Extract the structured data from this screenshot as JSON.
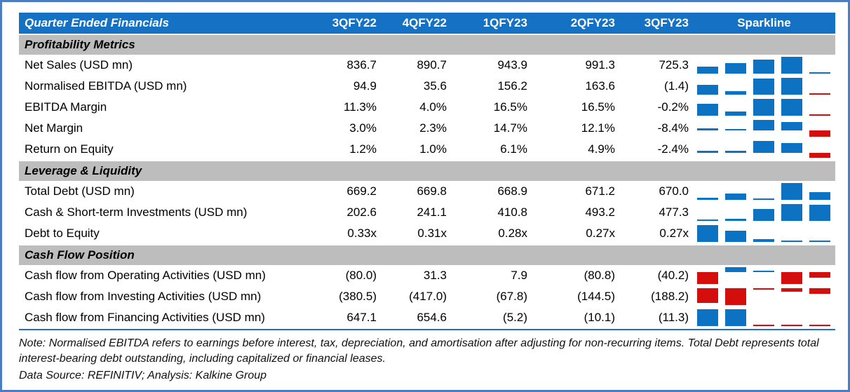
{
  "colors": {
    "frame_border": "#4A7EBF",
    "header_bg": "#1571C4",
    "header_text": "#FFFFFF",
    "section_bg": "#BDBDBD",
    "bottom_rule": "#1F6FC4",
    "spark_positive": "#0E72C2",
    "spark_negative": "#D40D0D"
  },
  "chart_data": {
    "type": "table",
    "title": "Quarter Ended Financials",
    "columns": [
      "3QFY22",
      "4QFY22",
      "1QFY23",
      "2QFY23",
      "3QFY23"
    ],
    "sparkline_label": "Sparkline",
    "sparkline": {
      "style": "column",
      "positive_color": "#0E72C2",
      "negative_color": "#D40D0D",
      "scaling": "per-row min-max, axis at zero when mixed signs"
    },
    "sections": [
      {
        "label": "Profitability Metrics",
        "rows": [
          {
            "label": "Net Sales (USD mn)",
            "display": [
              "836.7",
              "890.7",
              "943.9",
              "991.3",
              "725.3"
            ],
            "values": [
              836.7,
              890.7,
              943.9,
              991.3,
              725.3
            ]
          },
          {
            "label": "Normalised EBITDA (USD mn)",
            "display": [
              "94.9",
              "35.6",
              "156.2",
              "163.6",
              "(1.4)"
            ],
            "values": [
              94.9,
              35.6,
              156.2,
              163.6,
              -1.4
            ]
          },
          {
            "label": "EBITDA Margin",
            "display": [
              "11.3%",
              "4.0%",
              "16.5%",
              "16.5%",
              "-0.2%"
            ],
            "values": [
              11.3,
              4.0,
              16.5,
              16.5,
              -0.2
            ]
          },
          {
            "label": "Net Margin",
            "display": [
              "3.0%",
              "2.3%",
              "14.7%",
              "12.1%",
              "-8.4%"
            ],
            "values": [
              3.0,
              2.3,
              14.7,
              12.1,
              -8.4
            ]
          },
          {
            "label": "Return on Equity",
            "display": [
              "1.2%",
              "1.0%",
              "6.1%",
              "4.9%",
              "-2.4%"
            ],
            "values": [
              1.2,
              1.0,
              6.1,
              4.9,
              -2.4
            ]
          }
        ]
      },
      {
        "label": "Leverage & Liquidity",
        "rows": [
          {
            "label": "Total Debt (USD mn)",
            "display": [
              "669.2",
              "669.8",
              "668.9",
              "671.2",
              "670.0"
            ],
            "values": [
              669.2,
              669.8,
              668.9,
              671.2,
              670.0
            ]
          },
          {
            "label": "Cash & Short-term Investments (USD mn)",
            "display": [
              "202.6",
              "241.1",
              "410.8",
              "493.2",
              "477.3"
            ],
            "values": [
              202.6,
              241.1,
              410.8,
              493.2,
              477.3
            ]
          },
          {
            "label": "Debt to Equity",
            "display": [
              "0.33x",
              "0.31x",
              "0.28x",
              "0.27x",
              "0.27x"
            ],
            "values": [
              0.33,
              0.31,
              0.28,
              0.27,
              0.27
            ]
          }
        ]
      },
      {
        "label": "Cash Flow Position",
        "rows": [
          {
            "label": "Cash flow from Operating Activities (USD mn)",
            "display": [
              "(80.0)",
              "31.3",
              "7.9",
              "(80.8)",
              "(40.2)"
            ],
            "values": [
              -80.0,
              31.3,
              7.9,
              -80.8,
              -40.2
            ]
          },
          {
            "label": "Cash flow from Investing Activities (USD mn)",
            "display": [
              "(380.5)",
              "(417.0)",
              "(67.8)",
              "(144.5)",
              "(188.2)"
            ],
            "values": [
              -380.5,
              -417.0,
              -67.8,
              -144.5,
              -188.2
            ]
          },
          {
            "label": "Cash flow from Financing Activities (USD mn)",
            "display": [
              "647.1",
              "654.6",
              "(5.2)",
              "(10.1)",
              "(11.3)"
            ],
            "values": [
              647.1,
              654.6,
              -5.2,
              -10.1,
              -11.3
            ]
          }
        ]
      }
    ]
  },
  "footer": {
    "note": "Note: Normalised EBITDA refers to earnings before interest, tax, depreciation, and amortisation after adjusting for non-recurring items. Total Debt represents total interest-bearing debt outstanding, including capitalized or financial leases.",
    "source": "Data Source: REFINITIV; Analysis: Kalkine Group"
  }
}
